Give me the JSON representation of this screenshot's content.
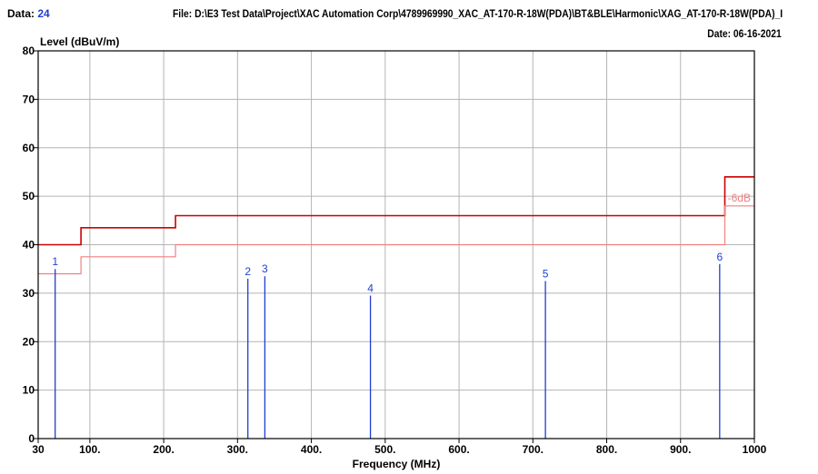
{
  "header": {
    "data_label": "Data:",
    "data_number": "24",
    "file_text": "File: D:\\E3 Test Data\\Project\\XAC Automation Corp\\4789969990_XAC_AT-170-R-18W(PDA)\\BT&BLE\\Harmonic\\XAG_AT-170-R-18W(PDA)_I",
    "date_text": "Date: 06-16-2021"
  },
  "chart_data": {
    "type": "line",
    "ylabel": "Level (dBuV/m)",
    "xlabel": "Frequency (MHz)",
    "xlim": [
      30,
      1000
    ],
    "ylim": [
      0,
      80
    ],
    "x_ticks": [
      {
        "value": 30,
        "label": "30"
      },
      {
        "value": 100,
        "label": "100."
      },
      {
        "value": 200,
        "label": "200."
      },
      {
        "value": 300,
        "label": "300."
      },
      {
        "value": 400,
        "label": "400."
      },
      {
        "value": 500,
        "label": "500."
      },
      {
        "value": 600,
        "label": "600."
      },
      {
        "value": 700,
        "label": "700."
      },
      {
        "value": 800,
        "label": "800."
      },
      {
        "value": 900,
        "label": "900."
      },
      {
        "value": 1000,
        "label": "1000"
      }
    ],
    "y_ticks": [
      0,
      10,
      20,
      30,
      40,
      50,
      60,
      70,
      80
    ],
    "grid": true,
    "limit_lines": [
      {
        "color": "#cc0000",
        "points": [
          [
            30,
            40
          ],
          [
            88,
            40
          ],
          [
            88,
            43.5
          ],
          [
            216,
            43.5
          ],
          [
            216,
            46
          ],
          [
            960,
            46
          ],
          [
            960,
            54
          ],
          [
            1000,
            54
          ]
        ]
      },
      {
        "color": "#f08080",
        "label": "-6dB",
        "points": [
          [
            30,
            34
          ],
          [
            88,
            34
          ],
          [
            88,
            37.5
          ],
          [
            216,
            37.5
          ],
          [
            216,
            40
          ],
          [
            960,
            40
          ],
          [
            960,
            48
          ],
          [
            1000,
            48
          ]
        ]
      }
    ],
    "markers": [
      {
        "label": "1",
        "x": 53,
        "y": 35.0
      },
      {
        "label": "2",
        "x": 314,
        "y": 33.0
      },
      {
        "label": "3",
        "x": 337,
        "y": 33.5
      },
      {
        "label": "4",
        "x": 480,
        "y": 29.5
      },
      {
        "label": "5",
        "x": 717,
        "y": 32.5
      },
      {
        "label": "6",
        "x": 953,
        "y": 36.0
      }
    ],
    "colors": {
      "marker": "#1f3fd0",
      "grid": "#b4b4b4",
      "frame": "#000000"
    }
  }
}
